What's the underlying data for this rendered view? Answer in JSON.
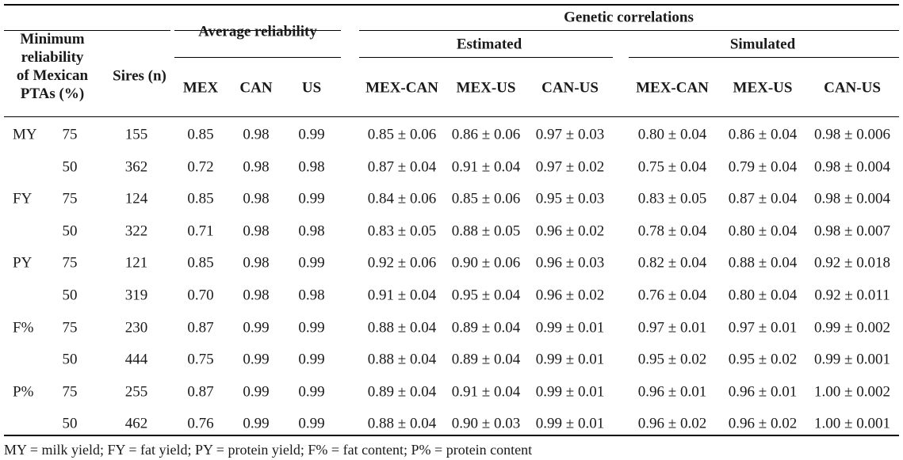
{
  "header": {
    "stub_line1": "Minimum",
    "stub_line2": "reliability",
    "stub_line3": "of Mexican",
    "stub_line4": "PTAs (%)",
    "sires": "Sires (n)",
    "avg_reliability": "Average reliability",
    "genetic_correlations": "Genetic correlations",
    "estimated": "Estimated",
    "simulated": "Simulated",
    "mex": "MEX",
    "can": "CAN",
    "us": "US",
    "mex_can": "MEX-CAN",
    "mex_us": "MEX-US",
    "can_us": "CAN-US",
    "sim_mex_can": "MEX-CAN",
    "sim_mex_us": "MEX-US",
    "sim_can_us": "CAN-US"
  },
  "rows": [
    {
      "trait": "MY",
      "min": "75",
      "sires": "155",
      "mex": "0.85",
      "can": "0.98",
      "us": "0.99",
      "e1": "0.85 ± 0.06",
      "e2": "0.86 ± 0.06",
      "e3": "0.97 ± 0.03",
      "s1": "0.80 ± 0.04",
      "s2": "0.86 ± 0.04",
      "s3": "0.98 ± 0.006"
    },
    {
      "trait": "",
      "min": "50",
      "sires": "362",
      "mex": "0.72",
      "can": "0.98",
      "us": "0.98",
      "e1": "0.87 ± 0.04",
      "e2": "0.91 ± 0.04",
      "e3": "0.97 ± 0.02",
      "s1": "0.75 ± 0.04",
      "s2": "0.79 ± 0.04",
      "s3": "0.98 ± 0.004"
    },
    {
      "trait": "FY",
      "min": "75",
      "sires": "124",
      "mex": "0.85",
      "can": "0.98",
      "us": "0.99",
      "e1": "0.84 ± 0.06",
      "e2": "0.85 ± 0.06",
      "e3": "0.95 ± 0.03",
      "s1": "0.83 ± 0.05",
      "s2": "0.87 ± 0.04",
      "s3": "0.98 ± 0.004"
    },
    {
      "trait": "",
      "min": "50",
      "sires": "322",
      "mex": "0.71",
      "can": "0.98",
      "us": "0.98",
      "e1": "0.83 ± 0.05",
      "e2": "0.88 ± 0.05",
      "e3": "0.96 ± 0.02",
      "s1": "0.78 ± 0.04",
      "s2": "0.80 ± 0.04",
      "s3": "0.98 ± 0.007"
    },
    {
      "trait": "PY",
      "min": "75",
      "sires": "121",
      "mex": "0.85",
      "can": "0.98",
      "us": "0.99",
      "e1": "0.92 ± 0.06",
      "e2": "0.90 ± 0.06",
      "e3": "0.96 ± 0.03",
      "s1": "0.82 ± 0.04",
      "s2": "0.88 ± 0.04",
      "s3": "0.92 ± 0.018"
    },
    {
      "trait": "",
      "min": "50",
      "sires": "319",
      "mex": "0.70",
      "can": "0.98",
      "us": "0.98",
      "e1": "0.91 ± 0.04",
      "e2": "0.95 ± 0.04",
      "e3": "0.96 ± 0.02",
      "s1": "0.76 ± 0.04",
      "s2": "0.80 ± 0.04",
      "s3": "0.92 ± 0.011"
    },
    {
      "trait": "F%",
      "min": "75",
      "sires": "230",
      "mex": "0.87",
      "can": "0.99",
      "us": "0.99",
      "e1": "0.88 ± 0.04",
      "e2": "0.89 ± 0.04",
      "e3": "0.99 ± 0.01",
      "s1": "0.97 ± 0.01",
      "s2": "0.97 ± 0.01",
      "s3": "0.99 ± 0.002"
    },
    {
      "trait": "",
      "min": "50",
      "sires": "444",
      "mex": "0.75",
      "can": "0.99",
      "us": "0.99",
      "e1": "0.88 ± 0.04",
      "e2": "0.89 ± 0.04",
      "e3": "0.99 ± 0.01",
      "s1": "0.95 ± 0.02",
      "s2": "0.95 ± 0.02",
      "s3": "0.99 ± 0.001"
    },
    {
      "trait": "P%",
      "min": "75",
      "sires": "255",
      "mex": "0.87",
      "can": "0.99",
      "us": "0.99",
      "e1": "0.89 ± 0.04",
      "e2": "0.91 ± 0.04",
      "e3": "0.99 ± 0.01",
      "s1": "0.96 ± 0.01",
      "s2": "0.96 ± 0.01",
      "s3": "1.00 ± 0.002"
    },
    {
      "trait": "",
      "min": "50",
      "sires": "462",
      "mex": "0.76",
      "can": "0.99",
      "us": "0.99",
      "e1": "0.88 ± 0.04",
      "e2": "0.90 ± 0.03",
      "e3": "0.99 ± 0.01",
      "s1": "0.96 ± 0.02",
      "s2": "0.96 ± 0.02",
      "s3": "1.00 ± 0.001"
    }
  ],
  "footnote": "MY = milk yield; FY = fat yield; PY = protein yield; F% = fat content; P% = protein content"
}
